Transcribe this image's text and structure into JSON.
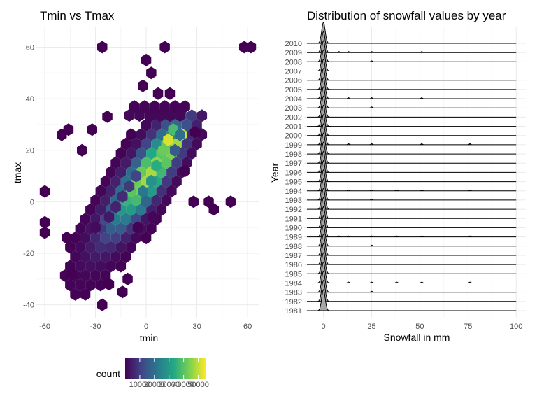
{
  "chart_data": [
    {
      "type": "heatmap",
      "subtype": "hexbin",
      "title": "Tmin vs Tmax",
      "xlabel": "tmin",
      "ylabel": "tmax",
      "xlim": [
        -65,
        67
      ],
      "ylim": [
        -45,
        68
      ],
      "x_ticks": [
        -60,
        -30,
        0,
        30,
        60
      ],
      "y_ticks": [
        -40,
        -20,
        0,
        20,
        40,
        60
      ],
      "grid": true,
      "colormap": "viridis",
      "colors": [
        "#440154",
        "#414487",
        "#2a788e",
        "#22a884",
        "#7ad151",
        "#fde725"
      ],
      "legend": {
        "title": "count",
        "position": "bottom",
        "range": [
          0,
          55000
        ],
        "tick_values": [
          10000,
          20000,
          30000,
          40000,
          50000
        ],
        "tick_labels": [
          "10000",
          "20000",
          "30000",
          "40000",
          "50000"
        ]
      },
      "points": [
        {
          "x": -26,
          "y": 60,
          "count": 1
        },
        {
          "x": 11,
          "y": 60,
          "count": 1
        },
        {
          "x": 58,
          "y": 60,
          "count": 1
        },
        {
          "x": 62,
          "y": 60,
          "count": 1
        },
        {
          "x": 0,
          "y": 55,
          "count": 1
        },
        {
          "x": 3,
          "y": 50,
          "count": 1
        },
        {
          "x": -2,
          "y": 45,
          "count": 1
        },
        {
          "x": 7,
          "y": 42,
          "count": 1
        },
        {
          "x": 14,
          "y": 42,
          "count": 1
        },
        {
          "x": 29,
          "y": 27,
          "count": 1
        },
        {
          "x": 23,
          "y": 12,
          "count": 1
        },
        {
          "x": 28,
          "y": 0,
          "count": 1
        },
        {
          "x": 37,
          "y": 0,
          "count": 1
        },
        {
          "x": 40,
          "y": -3,
          "count": 1
        },
        {
          "x": 50,
          "y": 0,
          "count": 1
        },
        {
          "x": -60,
          "y": 4,
          "count": 1
        },
        {
          "x": -60,
          "y": -8,
          "count": 1
        },
        {
          "x": -60,
          "y": -12,
          "count": 1
        },
        {
          "x": -50,
          "y": 26,
          "count": 1
        },
        {
          "x": -46,
          "y": 28,
          "count": 1
        },
        {
          "x": -32,
          "y": 28,
          "count": 1
        },
        {
          "x": -38,
          "y": 20,
          "count": 1
        },
        {
          "x": -23,
          "y": 33,
          "count": 1
        },
        {
          "x": -44,
          "y": -28,
          "count": 1
        },
        {
          "x": -26,
          "y": -40,
          "count": 1
        },
        {
          "x": -11,
          "y": -30,
          "count": 1
        },
        {
          "x": -14,
          "y": -35,
          "count": 1
        },
        {
          "x": -22,
          "y": -32,
          "count": 1
        },
        {
          "x": -47,
          "y": -14,
          "count": 1
        },
        {
          "x": -5,
          "y": -10,
          "count": 500
        },
        {
          "x": 4,
          "y": -6,
          "count": 800
        },
        {
          "x": -30,
          "y": -10,
          "count": 1500
        },
        {
          "x": -22,
          "y": -6,
          "count": 4000
        },
        {
          "x": -18,
          "y": -2,
          "count": 5500
        },
        {
          "x": -14,
          "y": 2,
          "count": 7000
        },
        {
          "x": -10,
          "y": 6,
          "count": 9000
        },
        {
          "x": -6,
          "y": 10,
          "count": 11000
        },
        {
          "x": -2,
          "y": 4,
          "count": 22000
        },
        {
          "x": 0,
          "y": 0,
          "count": 18000
        },
        {
          "x": 3,
          "y": 8,
          "count": 28000
        },
        {
          "x": 6,
          "y": 14,
          "count": 34000
        },
        {
          "x": 10,
          "y": 20,
          "count": 42000
        },
        {
          "x": 13,
          "y": 24,
          "count": 52000
        },
        {
          "x": 16,
          "y": 28,
          "count": 38000
        },
        {
          "x": 20,
          "y": 26,
          "count": 20000
        },
        {
          "x": 17,
          "y": 20,
          "count": 16000
        }
      ]
    },
    {
      "type": "area",
      "subtype": "ridgeline",
      "title": "Distribution of snowfall values by year",
      "xlabel": "Snowfall in mm",
      "ylabel": "Year",
      "xlim": [
        -10,
        105
      ],
      "x_ticks": [
        0,
        25,
        50,
        75,
        100
      ],
      "grid": true,
      "fill_color": "#a6a6a6",
      "years": [
        "1981",
        "1982",
        "1983",
        "1984",
        "1985",
        "1986",
        "1987",
        "1988",
        "1989",
        "1990",
        "1991",
        "1992",
        "1993",
        "1994",
        "1995",
        "1996",
        "1997",
        "1998",
        "1999",
        "2000",
        "2001",
        "2002",
        "2003",
        "2004",
        "2005",
        "2006",
        "2007",
        "2008",
        "2009",
        "2010"
      ],
      "mode_snowfall_mm": 0,
      "minor_bumps": {
        "1983": [
          25
        ],
        "1984": [
          13,
          25,
          38,
          51,
          76
        ],
        "1988": [
          25
        ],
        "1989": [
          8,
          13,
          25,
          38,
          51,
          76
        ],
        "1993": [
          25
        ],
        "1994": [
          13,
          25,
          38,
          51,
          76
        ],
        "1999": [
          13,
          25,
          51,
          76
        ],
        "2003": [
          25
        ],
        "2004": [
          13,
          25,
          51
        ],
        "2008": [
          25
        ],
        "2009": [
          8,
          13,
          25,
          51
        ]
      }
    }
  ]
}
